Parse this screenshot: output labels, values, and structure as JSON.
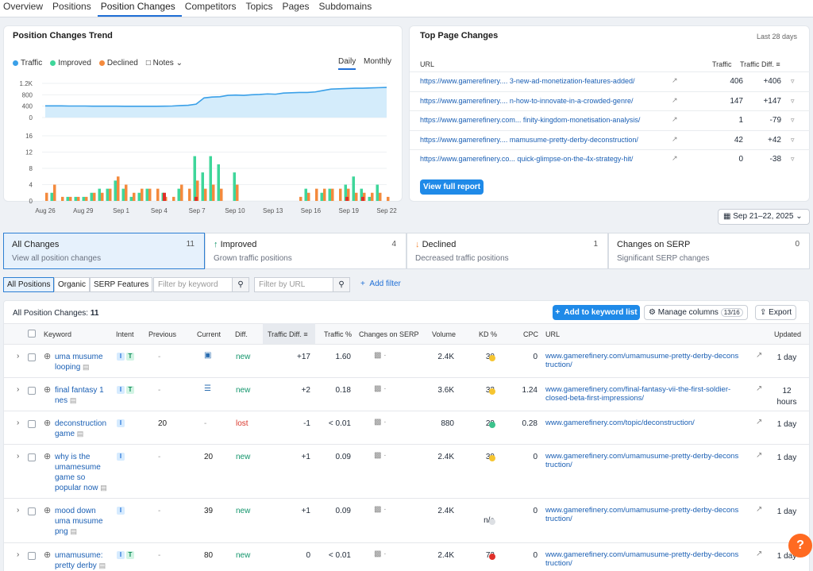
{
  "tabs": [
    "Overview",
    "Positions",
    "Position Changes",
    "Competitors",
    "Topics",
    "Pages",
    "Subdomains"
  ],
  "trend": {
    "title": "Position Changes Trend",
    "legend": [
      "Traffic",
      "Improved",
      "Declined",
      "Notes"
    ],
    "toggle": [
      "Daily",
      "Monthly"
    ],
    "colors": {
      "traffic": "#3aa0e8",
      "improved": "#3ed69a",
      "declined": "#f48a3d",
      "lost": "#e0302a"
    }
  },
  "top_pages": {
    "title": "Top Page Changes",
    "period": "Last 28 days",
    "headers": [
      "URL",
      "Traffic",
      "Traffic Diff."
    ],
    "rows": [
      {
        "url": "https://www.gamerefinery.... 3-new-ad-monetization-features-added/",
        "traffic": "406",
        "diff": "+406"
      },
      {
        "url": "https://www.gamerefinery.... n-how-to-innovate-in-a-crowded-genre/",
        "traffic": "147",
        "diff": "+147"
      },
      {
        "url": "https://www.gamerefinery.com... finity-kingdom-monetisation-analysis/",
        "traffic": "1",
        "diff": "-79"
      },
      {
        "url": "https://www.gamerefinery.... mamusume-pretty-derby-deconstruction/",
        "traffic": "42",
        "diff": "+42"
      },
      {
        "url": "https://www.gamerefinery.co... quick-glimpse-on-the-4x-strategy-hit/",
        "traffic": "0",
        "diff": "-38"
      }
    ],
    "button": "View full report"
  },
  "date_picker": "Sep 21–22, 2025",
  "tiles": [
    {
      "title": "All Changes",
      "count": "11",
      "sub": "View all position changes"
    },
    {
      "title": "Improved",
      "count": "4",
      "sub": "Grown traffic positions"
    },
    {
      "title": "Declined",
      "count": "1",
      "sub": "Decreased traffic positions"
    },
    {
      "title": "Changes on SERP",
      "count": "0",
      "sub": "Significant SERP changes"
    }
  ],
  "filters": {
    "segments": [
      "All Positions",
      "Organic",
      "SERP Features"
    ],
    "kw_placeholder": "Filter by keyword",
    "url_placeholder": "Filter by URL",
    "add_filter": "Add filter"
  },
  "table": {
    "label": "All Position Changes:",
    "count": "11",
    "add_button": "Add to keyword list",
    "manage": "Manage columns",
    "manage_badge": "13/16",
    "export": "Export",
    "headers": [
      "Keyword",
      "Intent",
      "Previous",
      "Current",
      "Diff.",
      "Traffic Diff.",
      "Traffic %",
      "Changes on SERP",
      "Volume",
      "KD %",
      "CPC",
      "URL",
      "Updated"
    ],
    "rows": [
      {
        "kw": [
          "uma musume",
          "looping"
        ],
        "intent": [
          "I",
          "T"
        ],
        "prev": "-",
        "cur": "",
        "diff": "new",
        "tdiff": "+17",
        "tpct": "1.60",
        "vol": "2.4K",
        "kd": "30",
        "kdc": "#f6c531",
        "cpc": "0",
        "url": [
          "www.gamerefinery.com/umamusume-pretty-derby-decons",
          "truction/"
        ],
        "upd": [
          "1 day"
        ]
      },
      {
        "kw": [
          "final fantasy 1",
          "nes"
        ],
        "intent": [
          "I",
          "T"
        ],
        "prev": "-",
        "cur": "",
        "diff": "new",
        "tdiff": "+2",
        "tpct": "0.18",
        "vol": "3.6K",
        "kd": "33",
        "kdc": "#f6c531",
        "cpc": "1.24",
        "url": [
          "www.gamerefinery.com/final-fantasy-vii-the-first-soldier-",
          "closed-beta-first-impressions/"
        ],
        "upd": [
          "12",
          "hours"
        ]
      },
      {
        "kw": [
          "deconstruction",
          "game"
        ],
        "intent": [
          "I"
        ],
        "prev": "20",
        "cur": "-",
        "diff": "lost",
        "tdiff": "-1",
        "tpct": "< 0.01",
        "vol": "880",
        "kd": "29",
        "kdc": "#3cc28c",
        "cpc": "0.28",
        "url": [
          "www.gamerefinery.com/topic/deconstruction/"
        ],
        "upd": [
          "1 day"
        ]
      },
      {
        "kw": [
          "why is the",
          "umamesume",
          "game so",
          "popular now"
        ],
        "intent": [
          "I"
        ],
        "prev": "-",
        "cur": "20",
        "diff": "new",
        "tdiff": "+1",
        "tpct": "0.09",
        "vol": "2.4K",
        "kd": "39",
        "kdc": "#f6c531",
        "cpc": "0",
        "url": [
          "www.gamerefinery.com/umamusume-pretty-derby-decons",
          "truction/"
        ],
        "upd": [
          "1 day"
        ]
      },
      {
        "kw": [
          "mood down",
          "uma musume",
          "png"
        ],
        "intent": [
          "I"
        ],
        "prev": "-",
        "cur": "39",
        "diff": "new",
        "tdiff": "+1",
        "tpct": "0.09",
        "vol": "2.4K",
        "kd": "n/a",
        "kdc": "#dcdfe3",
        "cpc": "0",
        "url": [
          "www.gamerefinery.com/umamusume-pretty-derby-decons",
          "truction/"
        ],
        "upd": [
          "1 day"
        ]
      },
      {
        "kw": [
          "umamusume:",
          "pretty derby"
        ],
        "intent": [
          "I",
          "T"
        ],
        "prev": "-",
        "cur": "80",
        "diff": "new",
        "tdiff": "0",
        "tpct": "< 0.01",
        "vol": "2.4K",
        "kd": "73",
        "kdc": "#e0302a",
        "cpc": "0",
        "url": [
          "www.gamerefinery.com/umamusume-pretty-derby-decons",
          "truction/"
        ],
        "upd": [
          "1 day"
        ]
      }
    ]
  },
  "help": "?",
  "chart_data": {
    "type": "bar",
    "x_ticks": [
      "Aug 26",
      "Aug 29",
      "Sep 1",
      "Sep 4",
      "Sep 7",
      "Sep 10",
      "Sep 13",
      "Sep 16",
      "Sep 19",
      "Sep 22"
    ],
    "traffic_ticks": [
      "1.2K",
      "800",
      "400",
      "0"
    ],
    "traffic_ylim": [
      0,
      1200
    ],
    "changes_ticks": [
      "16",
      "12",
      "8",
      "4",
      "0"
    ],
    "changes_ylim": [
      0,
      16
    ],
    "traffic_series": [
      410,
      410,
      410,
      405,
      405,
      405,
      400,
      400,
      400,
      400,
      395,
      395,
      395,
      395,
      395,
      400,
      405,
      420,
      430,
      470,
      690,
      720,
      730,
      780,
      790,
      780,
      800,
      810,
      830,
      820,
      860,
      870,
      880,
      880,
      900,
      950,
      1000,
      1010,
      1020,
      1030,
      1030,
      1040,
      1050,
      1060
    ],
    "improved": [
      0,
      2,
      0,
      1,
      1,
      1,
      2,
      3,
      3,
      5,
      3,
      1,
      2,
      3,
      0,
      2,
      0,
      3,
      0,
      11,
      7,
      11,
      9,
      0,
      7,
      0,
      0,
      0,
      0,
      0,
      0,
      0,
      0,
      3,
      0,
      2,
      3,
      0,
      4,
      6,
      3,
      1,
      4,
      0
    ],
    "declined": [
      2,
      4,
      1,
      1,
      1,
      1,
      2,
      2,
      3,
      6,
      4,
      2,
      3,
      3,
      3,
      1,
      1,
      4,
      3,
      5,
      3,
      4,
      3,
      0,
      4,
      0,
      0,
      0,
      0,
      0,
      0,
      0,
      1,
      2,
      3,
      3,
      3,
      3,
      3,
      2,
      2,
      2,
      2,
      1
    ],
    "lost": [
      0,
      0,
      0,
      0,
      0,
      0,
      0,
      0,
      0,
      0,
      0,
      0,
      0,
      0,
      0,
      2,
      0,
      0,
      0,
      1,
      0,
      0,
      0,
      0,
      0,
      0,
      0,
      0,
      0,
      0,
      0,
      0,
      0,
      0,
      0,
      0,
      0,
      0,
      1,
      0,
      1,
      0,
      0,
      0
    ]
  }
}
